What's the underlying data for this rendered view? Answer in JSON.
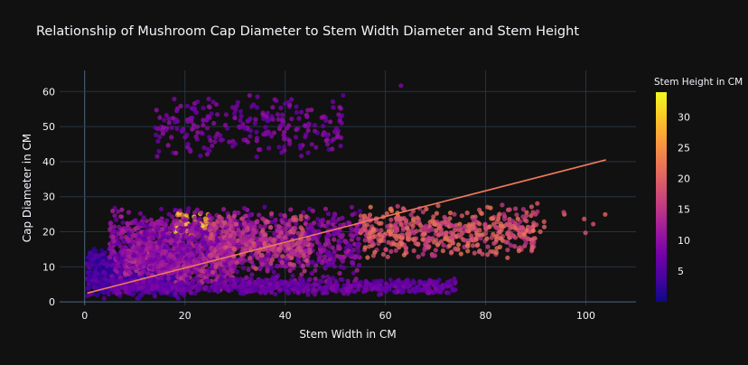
{
  "chart_data": {
    "type": "scatter",
    "title": "Relationship of Mushroom Cap Diameter to Stem Width Diameter and Stem Height",
    "xlabel": "Stem Width in CM",
    "ylabel": "Cap Diameter in CM",
    "xlim": [
      -5,
      110
    ],
    "ylim": [
      -1,
      66
    ],
    "x_ticks": [
      0,
      20,
      40,
      60,
      80,
      100
    ],
    "y_ticks": [
      0,
      10,
      20,
      30,
      40,
      50,
      60
    ],
    "grid": true,
    "colorbar": {
      "title": "Stem Height in CM",
      "range": [
        0,
        34
      ],
      "ticks": [
        5,
        10,
        15,
        20,
        25,
        30
      ],
      "colorscale": "plasma"
    },
    "trendline": {
      "type": "ols",
      "color": "#ef7a5c",
      "points": [
        [
          0.5,
          2.5
        ],
        [
          104,
          40.5
        ]
      ]
    },
    "point_clusters": [
      {
        "x_range": [
          14,
          52
        ],
        "y_range": [
          40,
          60
        ],
        "count": 260,
        "color_range": [
          6,
          11
        ]
      },
      {
        "x_range": [
          63,
          64
        ],
        "y_range": [
          61.5,
          62.5
        ],
        "count": 1,
        "color_range": [
          8,
          9
        ]
      },
      {
        "x_range": [
          0.5,
          20
        ],
        "y_range": [
          0.5,
          16
        ],
        "count": 1100,
        "color_range": [
          1,
          7
        ]
      },
      {
        "x_range": [
          8,
          30
        ],
        "y_range": [
          3,
          24
        ],
        "count": 700,
        "color_range": [
          8,
          16
        ]
      },
      {
        "x_range": [
          18,
          25
        ],
        "y_range": [
          18,
          26
        ],
        "count": 60,
        "color_range": [
          22,
          34
        ]
      },
      {
        "x_range": [
          5,
          55
        ],
        "y_range": [
          5,
          28
        ],
        "count": 1100,
        "color_range": [
          6,
          13
        ]
      },
      {
        "x_range": [
          25,
          45
        ],
        "y_range": [
          8,
          26
        ],
        "count": 300,
        "color_range": [
          12,
          19
        ]
      },
      {
        "x_range": [
          5,
          74
        ],
        "y_range": [
          2,
          7
        ],
        "count": 700,
        "color_range": [
          5,
          9
        ]
      },
      {
        "x_range": [
          55,
          90
        ],
        "y_range": [
          12,
          28
        ],
        "count": 520,
        "color_range": [
          14,
          23
        ]
      },
      {
        "x_range": [
          90,
          104
        ],
        "y_range": [
          17,
          31
        ],
        "count": 12,
        "color_range": [
          15,
          23
        ]
      }
    ]
  }
}
